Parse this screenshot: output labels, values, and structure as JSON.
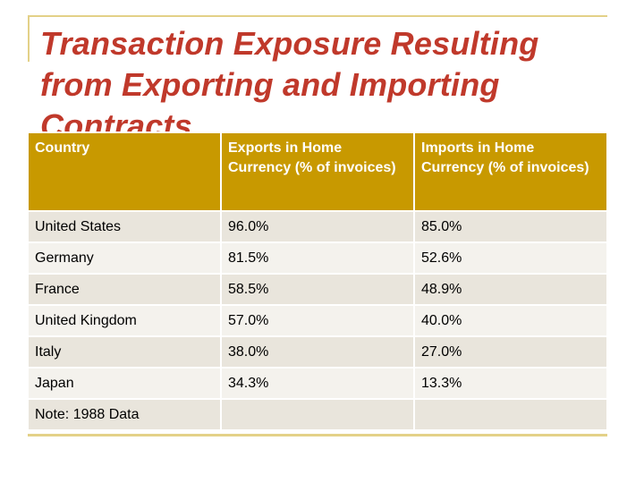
{
  "title": "Transaction Exposure Resulting from Exporting and Importing Contracts",
  "table": {
    "headers": {
      "country": "Country",
      "exports": "Exports in Home Currency (% of invoices)",
      "imports": "Imports in Home Currency (% of invoices)"
    },
    "rows": [
      {
        "country": "United States",
        "exports": "96.0%",
        "imports": "85.0%"
      },
      {
        "country": "Germany",
        "exports": "81.5%",
        "imports": "52.6%"
      },
      {
        "country": "France",
        "exports": "58.5%",
        "imports": "48.9%"
      },
      {
        "country": "United Kingdom",
        "exports": "57.0%",
        "imports": "40.0%"
      },
      {
        "country": "Italy",
        "exports": "38.0%",
        "imports": "27.0%"
      },
      {
        "country": "Japan",
        "exports": "34.3%",
        "imports": "13.3%"
      }
    ],
    "note": "Note: 1988 Data"
  },
  "colors": {
    "title": "#c0392b",
    "header_bg": "#c89900",
    "row_odd_bg": "#e9e5dc",
    "row_even_bg": "#f4f2ed",
    "rule": "#e3d188"
  }
}
